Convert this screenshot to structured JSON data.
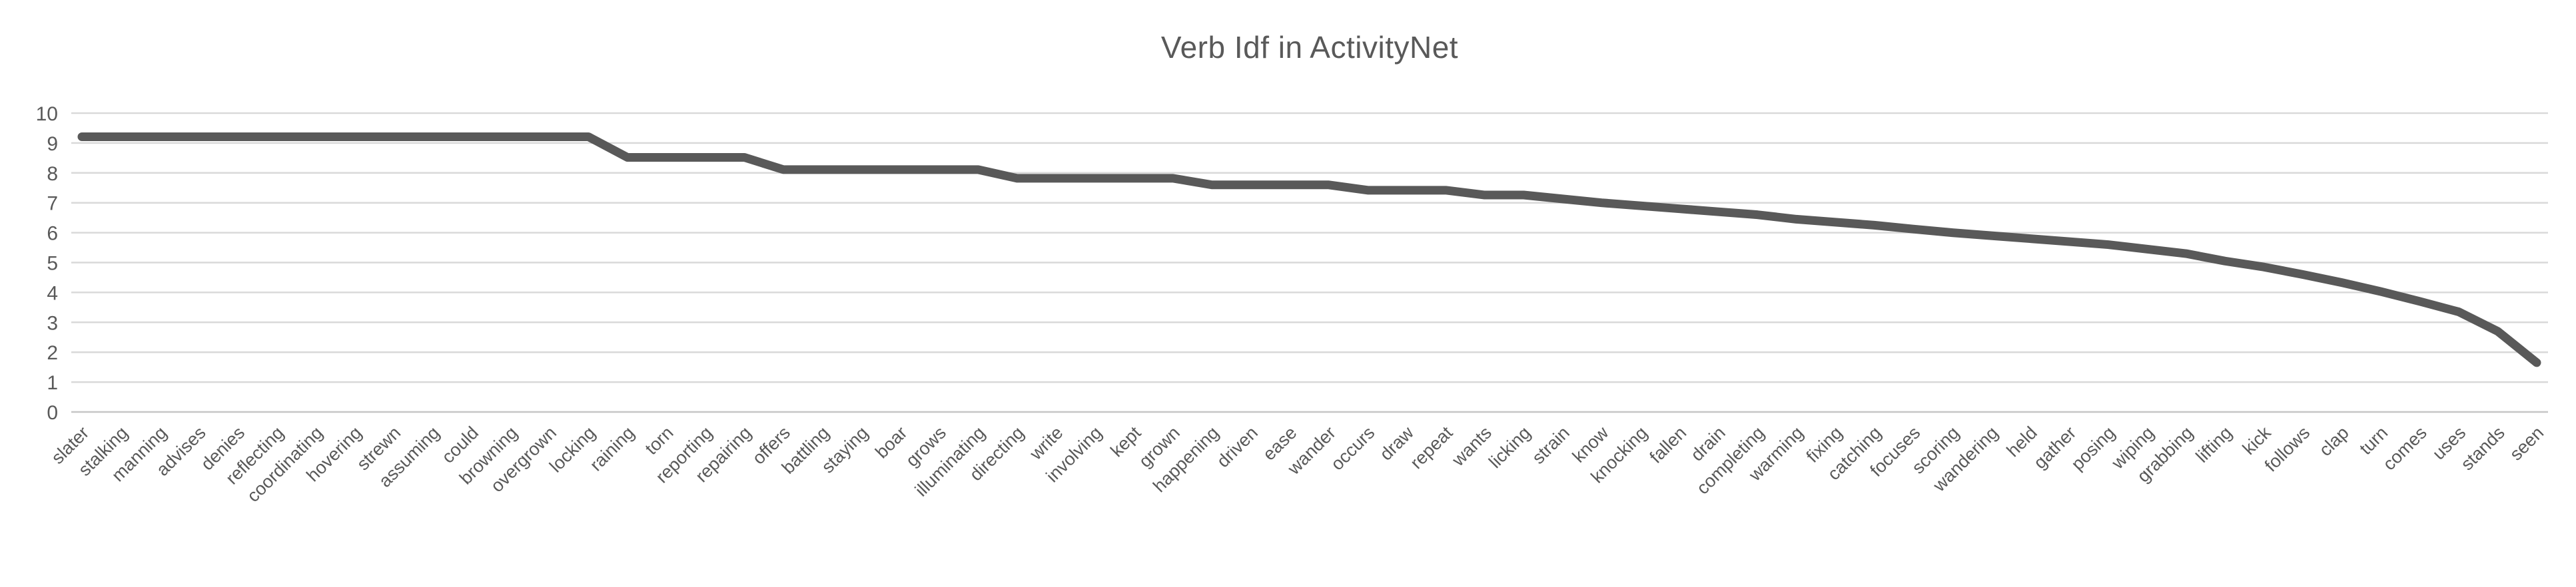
{
  "chart": {
    "colors": {
      "line": "#595959",
      "gridline": "#D9D9D9",
      "axis_line": "#C6C6C6",
      "tick_text": "#595959",
      "title_text": "#595959",
      "background": "#FFFFFF"
    }
  },
  "chart_data": {
    "type": "line",
    "title": "Verb Idf in ActivityNet",
    "xlabel": "",
    "ylabel": "",
    "ylim": [
      0,
      10
    ],
    "yticks": [
      0,
      1,
      2,
      3,
      4,
      5,
      6,
      7,
      8,
      9,
      10
    ],
    "grid": true,
    "legend_position": "none",
    "x_tick_rotation": 45,
    "categories": [
      "slater",
      "stalking",
      "manning",
      "advises",
      "denies",
      "reflecting",
      "coordinating",
      "hovering",
      "strewn",
      "assuming",
      "could",
      "browning",
      "overgrown",
      "locking",
      "raining",
      "torn",
      "reporting",
      "repairing",
      "offers",
      "battling",
      "staying",
      "boar",
      "grows",
      "illuminating",
      "directing",
      "write",
      "involving",
      "kept",
      "grown",
      "happening",
      "driven",
      "ease",
      "wander",
      "occurs",
      "draw",
      "repeat",
      "wants",
      "licking",
      "strain",
      "know",
      "knocking",
      "fallen",
      "drain",
      "completing",
      "warming",
      "fixing",
      "catching",
      "focuses",
      "scoring",
      "wandering",
      "held",
      "gather",
      "posing",
      "wiping",
      "grabbing",
      "lifting",
      "kick",
      "follows",
      "clap",
      "turn",
      "comes",
      "uses",
      "stands",
      "seen"
    ],
    "series": [
      {
        "name": "Verb Idf",
        "values": [
          9.21,
          9.21,
          9.21,
          9.21,
          9.21,
          9.21,
          9.21,
          9.21,
          9.21,
          9.21,
          9.21,
          9.21,
          9.21,
          9.21,
          8.52,
          8.52,
          8.52,
          8.52,
          8.11,
          8.11,
          8.11,
          8.11,
          8.11,
          8.11,
          7.82,
          7.82,
          7.82,
          7.82,
          7.82,
          7.6,
          7.6,
          7.6,
          7.6,
          7.42,
          7.42,
          7.42,
          7.26,
          7.26,
          7.13,
          7.0,
          6.9,
          6.8,
          6.7,
          6.6,
          6.45,
          6.35,
          6.25,
          6.12,
          6.0,
          5.9,
          5.8,
          5.7,
          5.6,
          5.45,
          5.3,
          5.05,
          4.85,
          4.6,
          4.33,
          4.03,
          3.7,
          3.35,
          2.7,
          1.65
        ]
      }
    ]
  }
}
